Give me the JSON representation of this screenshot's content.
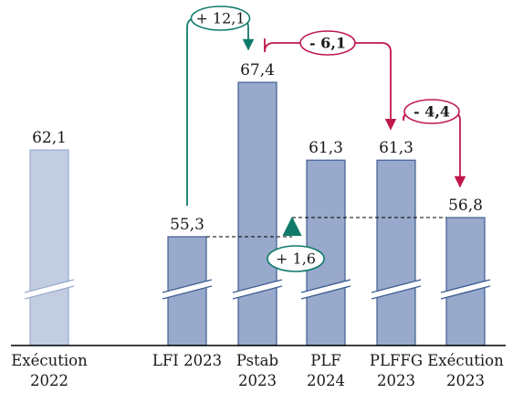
{
  "chart_data": {
    "type": "bar",
    "title": "",
    "xlabel": "",
    "ylabel": "",
    "axis_break": true,
    "categories": [
      [
        "Exécution",
        "2022"
      ],
      [
        "LFI 2023",
        ""
      ],
      [
        "Pstab",
        "2023"
      ],
      [
        "PLF",
        "2024"
      ],
      [
        "PLFFG",
        "2023"
      ],
      [
        "Exécution",
        "2023"
      ]
    ],
    "values": [
      62.1,
      55.3,
      67.4,
      61.3,
      61.3,
      56.8
    ],
    "value_labels": [
      "62,1",
      "55,3",
      "67,4",
      "61,3",
      "61,3",
      "56,8"
    ],
    "annotations": [
      {
        "text": "+ 12,1",
        "from": 1,
        "to": 2,
        "color": "#0f7a6a",
        "kind": "bridge"
      },
      {
        "text": "- 6,1",
        "from": 2,
        "to": 4,
        "color": "#c0174a",
        "kind": "bridge"
      },
      {
        "text": "- 4,4",
        "from": 4,
        "to": 5,
        "color": "#c0174a",
        "kind": "bridge"
      },
      {
        "text": "+ 1,6",
        "from": 1,
        "to": 5,
        "color": "#0f7a6a",
        "kind": "delta"
      }
    ],
    "colors": {
      "bar_light": "#c3cde1",
      "bar_light_stroke": "#9aabcf",
      "bar": "#98a9cb",
      "bar_stroke": "#3f5f93",
      "axis": "#000000",
      "green": "#0f7a6a",
      "red": "#c0174a"
    }
  }
}
